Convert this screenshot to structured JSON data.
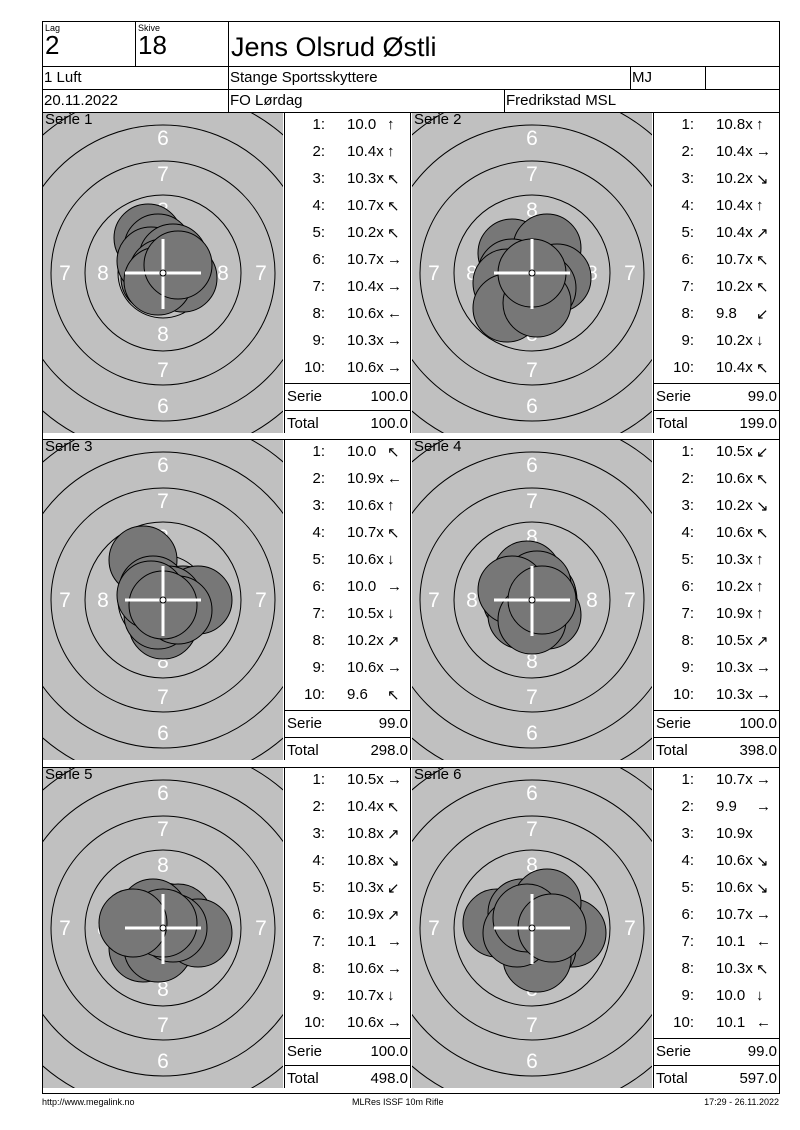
{
  "header": {
    "lag_label": "Lag",
    "lag_value": "2",
    "skive_label": "Skive",
    "skive_value": "18",
    "name": "Jens Olsrud Østli",
    "class": "1 Luft",
    "club": "Stange Sportsskyttere",
    "initials": "MJ",
    "blank": "",
    "date": "20.11.2022",
    "event": "FO Lørdag",
    "venue": "Fredrikstad MSL"
  },
  "labels": {
    "serie": "Serie",
    "total": "Total"
  },
  "series": [
    {
      "title": "Serie 1",
      "serie": "100.0",
      "total": "100.0",
      "shots": [
        {
          "n": "1:",
          "v": "10.0",
          "a": "↑"
        },
        {
          "n": "2:",
          "v": "10.4x",
          "a": "↑"
        },
        {
          "n": "3:",
          "v": "10.3x",
          "a": "↖"
        },
        {
          "n": "4:",
          "v": "10.7x",
          "a": "↖"
        },
        {
          "n": "5:",
          "v": "10.2x",
          "a": "↖"
        },
        {
          "n": "6:",
          "v": "10.7x",
          "a": "→"
        },
        {
          "n": "7:",
          "v": "10.4x",
          "a": "→"
        },
        {
          "n": "8:",
          "v": "10.6x",
          "a": "←"
        },
        {
          "n": "9:",
          "v": "10.3x",
          "a": "→"
        },
        {
          "n": "10:",
          "v": "10.6x",
          "a": "→"
        }
      ]
    },
    {
      "title": "Serie 2",
      "serie": "99.0",
      "total": "199.0",
      "shots": [
        {
          "n": "1:",
          "v": "10.8x",
          "a": "↑"
        },
        {
          "n": "2:",
          "v": "10.4x",
          "a": "→"
        },
        {
          "n": "3:",
          "v": "10.2x",
          "a": "↘"
        },
        {
          "n": "4:",
          "v": "10.4x",
          "a": "↑"
        },
        {
          "n": "5:",
          "v": "10.4x",
          "a": "↗"
        },
        {
          "n": "6:",
          "v": "10.7x",
          "a": "↖"
        },
        {
          "n": "7:",
          "v": "10.2x",
          "a": "↖"
        },
        {
          "n": "8:",
          "v": "9.8",
          "a": "↙"
        },
        {
          "n": "9:",
          "v": "10.2x",
          "a": "↓"
        },
        {
          "n": "10:",
          "v": "10.4x",
          "a": "↖"
        }
      ]
    },
    {
      "title": "Serie 3",
      "serie": "99.0",
      "total": "298.0",
      "shots": [
        {
          "n": "1:",
          "v": "10.0",
          "a": "↖"
        },
        {
          "n": "2:",
          "v": "10.9x",
          "a": "←"
        },
        {
          "n": "3:",
          "v": "10.6x",
          "a": "↑"
        },
        {
          "n": "4:",
          "v": "10.7x",
          "a": "↖"
        },
        {
          "n": "5:",
          "v": "10.6x",
          "a": "↓"
        },
        {
          "n": "6:",
          "v": "10.0",
          "a": "→"
        },
        {
          "n": "7:",
          "v": "10.5x",
          "a": "↓"
        },
        {
          "n": "8:",
          "v": "10.2x",
          "a": "↗"
        },
        {
          "n": "9:",
          "v": "10.6x",
          "a": "→"
        },
        {
          "n": "10:",
          "v": "9.6",
          "a": "↖"
        }
      ]
    },
    {
      "title": "Serie 4",
      "serie": "100.0",
      "total": "398.0",
      "shots": [
        {
          "n": "1:",
          "v": "10.5x",
          "a": "↙"
        },
        {
          "n": "2:",
          "v": "10.6x",
          "a": "↖"
        },
        {
          "n": "3:",
          "v": "10.2x",
          "a": "↘"
        },
        {
          "n": "4:",
          "v": "10.6x",
          "a": "↖"
        },
        {
          "n": "5:",
          "v": "10.3x",
          "a": "↑"
        },
        {
          "n": "6:",
          "v": "10.2x",
          "a": "↑"
        },
        {
          "n": "7:",
          "v": "10.9x",
          "a": "↑"
        },
        {
          "n": "8:",
          "v": "10.5x",
          "a": "↗"
        },
        {
          "n": "9:",
          "v": "10.3x",
          "a": "→"
        },
        {
          "n": "10:",
          "v": "10.3x",
          "a": "→"
        }
      ]
    },
    {
      "title": "Serie 5",
      "serie": "100.0",
      "total": "498.0",
      "shots": [
        {
          "n": "1:",
          "v": "10.5x",
          "a": "→"
        },
        {
          "n": "2:",
          "v": "10.4x",
          "a": "↖"
        },
        {
          "n": "3:",
          "v": "10.8x",
          "a": "↗"
        },
        {
          "n": "4:",
          "v": "10.8x",
          "a": "↘"
        },
        {
          "n": "5:",
          "v": "10.3x",
          "a": "↙"
        },
        {
          "n": "6:",
          "v": "10.9x",
          "a": "↗"
        },
        {
          "n": "7:",
          "v": "10.1",
          "a": "→"
        },
        {
          "n": "8:",
          "v": "10.6x",
          "a": "→"
        },
        {
          "n": "9:",
          "v": "10.7x",
          "a": "↓"
        },
        {
          "n": "10:",
          "v": "10.6x",
          "a": "→"
        }
      ]
    },
    {
      "title": "Serie 6",
      "serie": "99.0",
      "total": "597.0",
      "shots": [
        {
          "n": "1:",
          "v": "10.7x",
          "a": "→"
        },
        {
          "n": "2:",
          "v": "9.9",
          "a": "→"
        },
        {
          "n": "3:",
          "v": "10.9x",
          "a": ""
        },
        {
          "n": "4:",
          "v": "10.6x",
          "a": "↘"
        },
        {
          "n": "5:",
          "v": "10.6x",
          "a": "↘"
        },
        {
          "n": "6:",
          "v": "10.7x",
          "a": "→"
        },
        {
          "n": "7:",
          "v": "10.1",
          "a": "←"
        },
        {
          "n": "8:",
          "v": "10.3x",
          "a": "↖"
        },
        {
          "n": "9:",
          "v": "10.0",
          "a": "↓"
        },
        {
          "n": "10:",
          "v": "10.1",
          "a": "←"
        }
      ]
    }
  ],
  "ring_labels": {
    "r6": "6",
    "r7": "7",
    "r8": "8"
  },
  "footer": {
    "url": "http://www.megalink.no",
    "program": "MLRes ISSF 10m Rifle",
    "timestamp": "17:29 - 26.11.2022"
  },
  "colors": {
    "target_bg": "#c0c0c0",
    "hole": "#777777"
  }
}
